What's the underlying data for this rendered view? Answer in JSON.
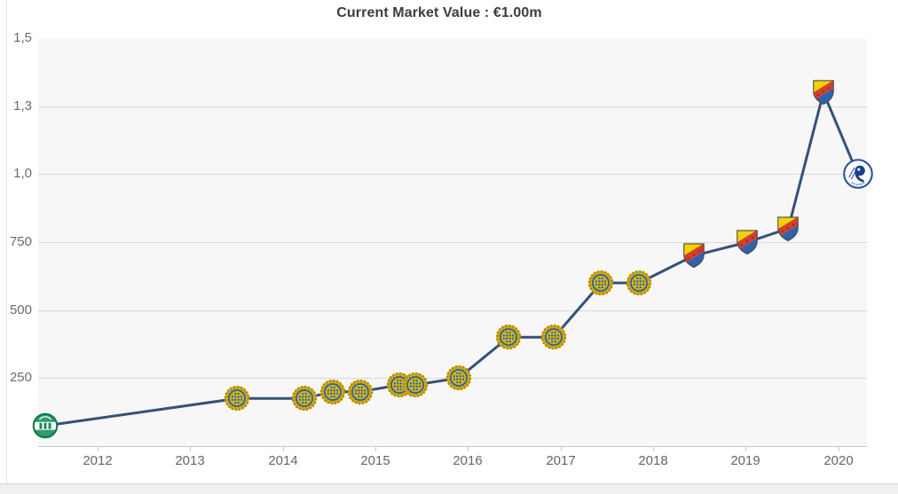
{
  "title": "Current Market Value : €1.00m",
  "colors": {
    "line": "#35517a",
    "plot_bg": "#f7f7f7",
    "grid": "#d9d9d9",
    "axis": "#c9c9c9",
    "tick_text": "#666666",
    "title_text": "#3c3c3c"
  },
  "chart_data": {
    "type": "line",
    "title": "Current Market Value : €1.00m",
    "legend": "none",
    "grid": "horizontal",
    "x_axis": {
      "ticks": [
        2012,
        2013,
        2014,
        2015,
        2016,
        2017,
        2018,
        2019,
        2020
      ],
      "range": [
        2011.36,
        2020.31
      ]
    },
    "y_axis": {
      "tick_labels": [
        "1,5",
        "1,3",
        "1,0",
        "750",
        "500",
        "250"
      ],
      "tick_values_k": [
        1500,
        1250,
        1000,
        750,
        500,
        250
      ],
      "range_k": [
        0,
        1500
      ],
      "unit": "euro, thousands (millions shown with comma)"
    },
    "series": [
      {
        "name": "Market value",
        "points": [
          {
            "x": 2011.44,
            "value_k": 75,
            "club_crest": "green-white-round"
          },
          {
            "x": 2013.51,
            "value_k": 175,
            "club_crest": "yellow-blue-wreath"
          },
          {
            "x": 2014.23,
            "value_k": 175,
            "club_crest": "yellow-blue-wreath"
          },
          {
            "x": 2014.54,
            "value_k": 200,
            "club_crest": "yellow-blue-wreath"
          },
          {
            "x": 2014.84,
            "value_k": 200,
            "club_crest": "yellow-blue-wreath"
          },
          {
            "x": 2015.26,
            "value_k": 225,
            "club_crest": "yellow-blue-wreath"
          },
          {
            "x": 2015.43,
            "value_k": 225,
            "club_crest": "yellow-blue-wreath"
          },
          {
            "x": 2015.9,
            "value_k": 250,
            "club_crest": "yellow-blue-wreath"
          },
          {
            "x": 2016.44,
            "value_k": 400,
            "club_crest": "yellow-blue-wreath"
          },
          {
            "x": 2016.93,
            "value_k": 400,
            "club_crest": "yellow-blue-wreath"
          },
          {
            "x": 2017.44,
            "value_k": 600,
            "club_crest": "yellow-blue-wreath"
          },
          {
            "x": 2017.85,
            "value_k": 600,
            "club_crest": "yellow-blue-wreath"
          },
          {
            "x": 2018.44,
            "value_k": 700,
            "club_crest": "red-yellow-blue-shield"
          },
          {
            "x": 2019.02,
            "value_k": 750,
            "club_crest": "red-yellow-blue-shield"
          },
          {
            "x": 2019.46,
            "value_k": 800,
            "club_crest": "red-yellow-blue-shield"
          },
          {
            "x": 2019.84,
            "value_k": 1300,
            "club_crest": "red-yellow-blue-shield"
          },
          {
            "x": 2020.21,
            "value_k": 1000,
            "club_crest": "blue-white-circle"
          }
        ]
      }
    ]
  }
}
